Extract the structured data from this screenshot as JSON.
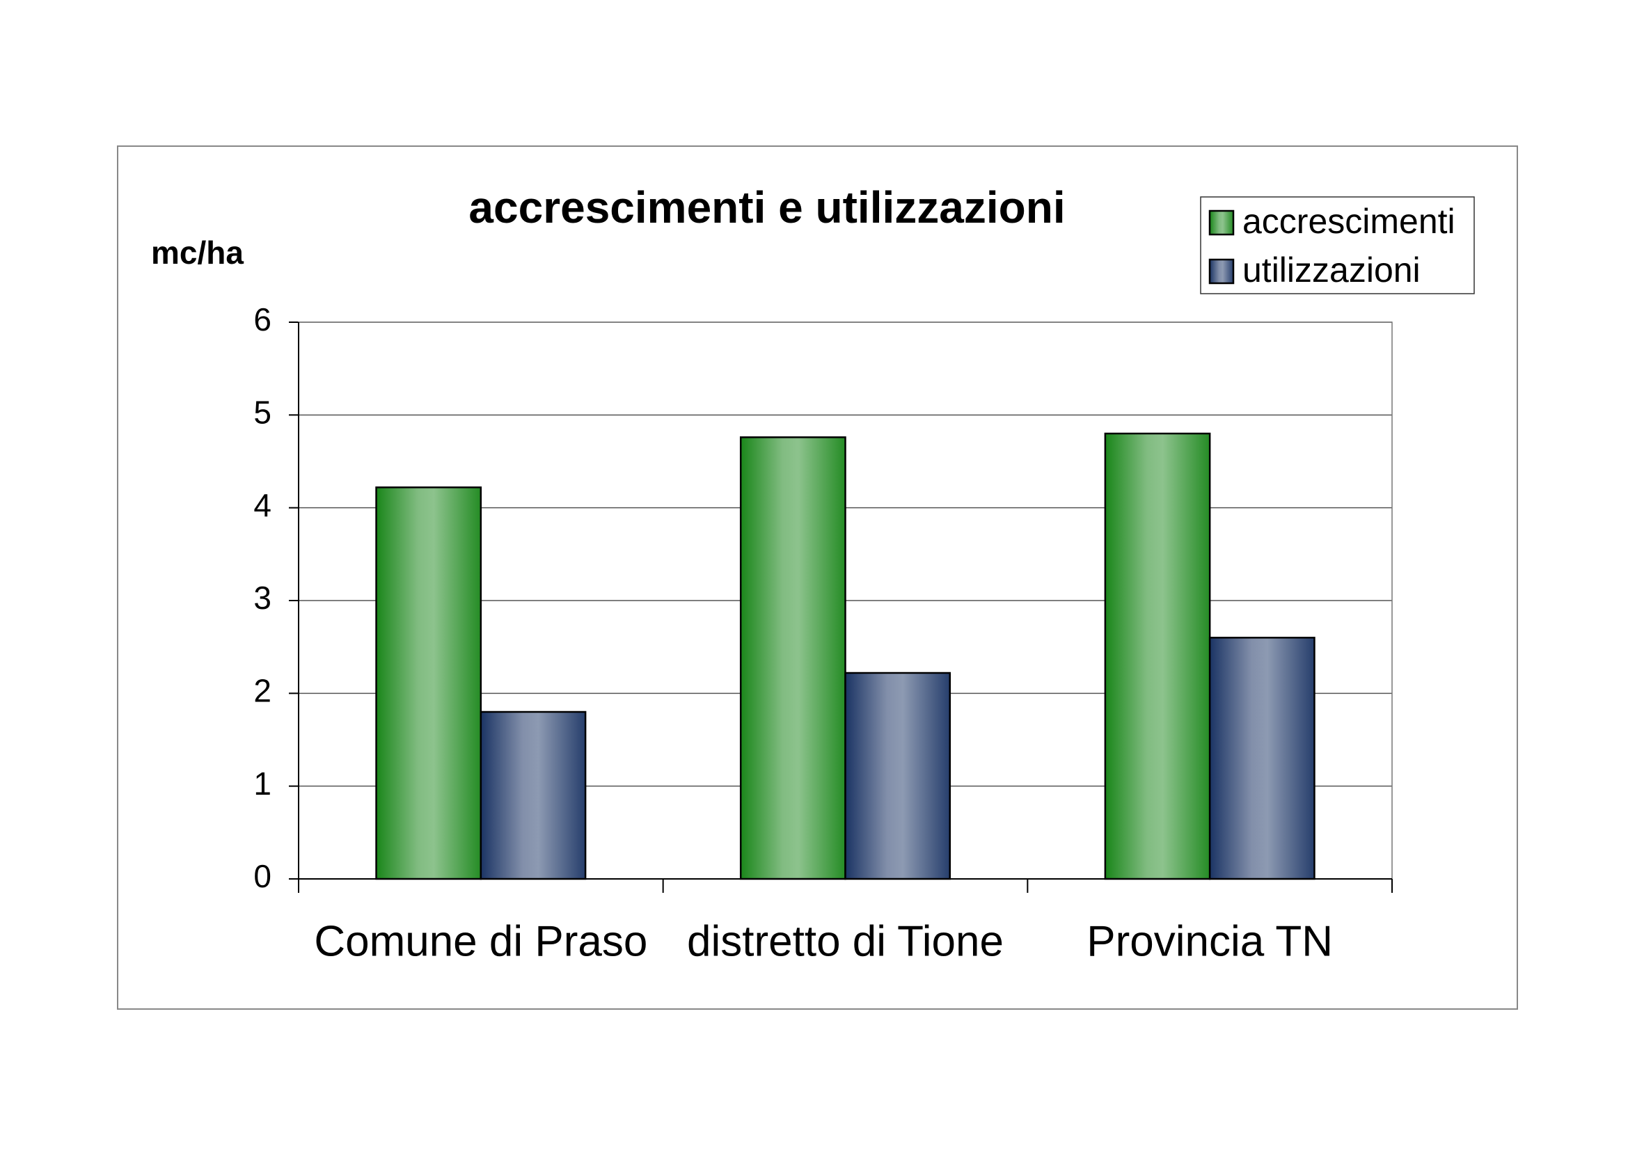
{
  "chart_data": {
    "type": "bar",
    "title": "accrescimenti e utilizzazioni",
    "y_label": "mc/ha",
    "categories": [
      "Comune di Praso",
      "distretto di Tione",
      "Provincia TN"
    ],
    "series": [
      {
        "name": "accrescimenti",
        "color": "#1a861a",
        "values": [
          4.22,
          4.76,
          4.8
        ]
      },
      {
        "name": "utilizzazioni",
        "color": "#1b3464",
        "values": [
          1.8,
          2.22,
          2.6
        ]
      }
    ],
    "ylim": [
      0,
      6
    ],
    "yticks": [
      0,
      1,
      2,
      3,
      4,
      5,
      6
    ],
    "grid": true,
    "legend": "top-right"
  }
}
